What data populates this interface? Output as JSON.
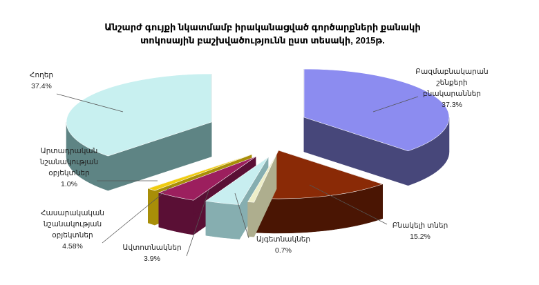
{
  "chart_data": {
    "type": "pie",
    "title": [
      "Անշարժ գույքի նկատմամբ իրականացված գործարքների քանակի",
      "տոկոսային բաշխվածությունն ըստ տեսակի, 2015թ."
    ],
    "slices": [
      {
        "label": [
          "Բազմաբնակարան",
          "շենքերի",
          "բնակարաններ"
        ],
        "value_text": "37.3%",
        "value": 37.3,
        "top": "#8c8cf0",
        "side": "#47477a"
      },
      {
        "label": [
          "Բնակելի տներ"
        ],
        "value_text": "15.2%",
        "value": 15.2,
        "top": "#8a2a06",
        "side": "#4a1503"
      },
      {
        "label": [
          "Այգետնակներ"
        ],
        "value_text": "0.7%",
        "value": 0.7,
        "top": "#eeeec8",
        "side": "#aeae8e"
      },
      {
        "label": [
          "Ավտոտնակներ"
        ],
        "value_text": "3.9%",
        "value": 3.9,
        "top": "#c8eef0",
        "side": "#86aeb0"
      },
      {
        "label": [
          "Հասարակական",
          "նշանակության",
          "օբյեկտներ"
        ],
        "value_text": "4.58%",
        "value": 4.58,
        "top": "#9c1f5e",
        "side": "#5a0f35"
      },
      {
        "label": [
          "Արտադրական",
          "նշանակության",
          "օբյեկտներ"
        ],
        "value_text": "1.0%",
        "value": 1.0,
        "top": "#f0cc10",
        "side": "#a88e08"
      },
      {
        "label": [
          "Հողեր"
        ],
        "value_text": "37.4%",
        "value": 37.4,
        "top": "#c8f0f0",
        "side": "#5e8484"
      }
    ],
    "legend": "none"
  }
}
